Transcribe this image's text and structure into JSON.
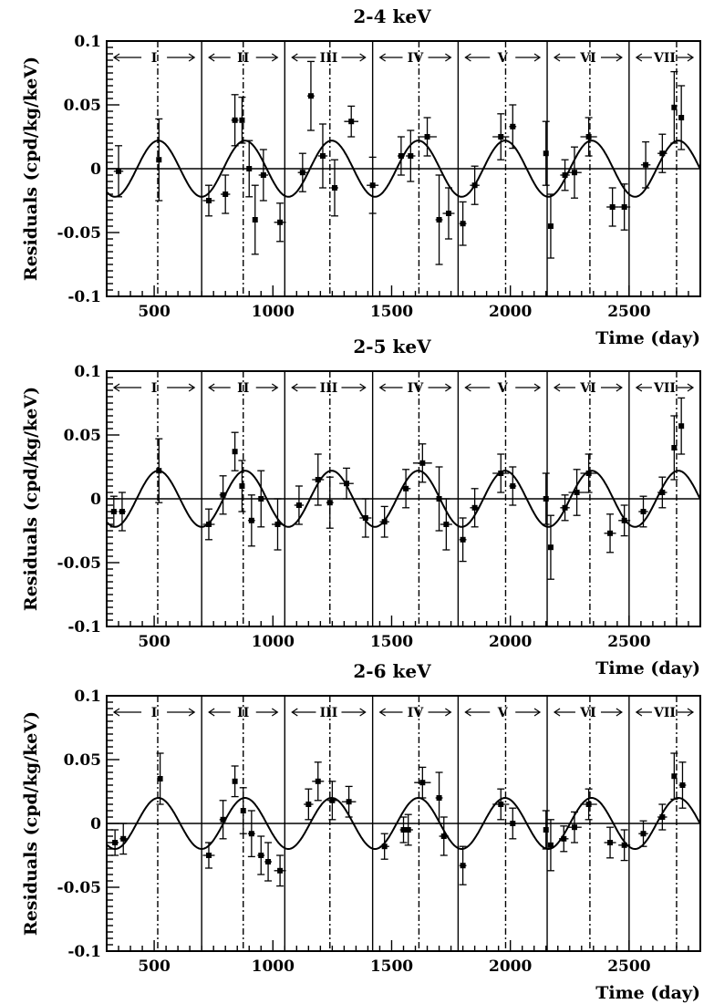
{
  "chart_data": [
    {
      "type": "scatter",
      "title": "2-4 keV",
      "xlabel": "Time (day)",
      "ylabel": "Residuals (cpd/kg/keV)",
      "xlim": [
        300,
        2800
      ],
      "ylim": [
        -0.1,
        0.1
      ],
      "x_ticks": [
        "500",
        "1000",
        "1500",
        "2000",
        "2500"
      ],
      "y_ticks": [
        "0.1",
        "0.05",
        "0",
        "-0.05",
        "-0.1"
      ],
      "annual_periods": [
        "I",
        "II",
        "III",
        "IV",
        "V",
        "VI",
        "VII"
      ],
      "period_boundaries": [
        300,
        700,
        1050,
        1420,
        1780,
        2155,
        2500,
        2800
      ],
      "phase_lines": [
        515,
        875,
        1240,
        1615,
        1980,
        2335,
        2700
      ],
      "cosine": {
        "amplitude": 0.022,
        "period": 365,
        "phase": 152.5
      },
      "series": [
        {
          "points": [
            {
              "x": 350,
              "y": -0.002,
              "xerr": 20,
              "yerr": 0.02
            },
            {
              "x": 520,
              "y": 0.007,
              "xerr": 10,
              "yerr": 0.032
            },
            {
              "x": 730,
              "y": -0.025,
              "xerr": 25,
              "yerr": 0.012
            },
            {
              "x": 800,
              "y": -0.02,
              "xerr": 20,
              "yerr": 0.015
            },
            {
              "x": 840,
              "y": 0.038,
              "xerr": 15,
              "yerr": 0.02
            },
            {
              "x": 870,
              "y": 0.038,
              "xerr": 10,
              "yerr": 0.018
            },
            {
              "x": 900,
              "y": 0.0,
              "xerr": 10,
              "yerr": 0.022
            },
            {
              "x": 925,
              "y": -0.04,
              "xerr": 10,
              "yerr": 0.027
            },
            {
              "x": 960,
              "y": -0.005,
              "xerr": 20,
              "yerr": 0.02
            },
            {
              "x": 1030,
              "y": -0.042,
              "xerr": 25,
              "yerr": 0.015
            },
            {
              "x": 1125,
              "y": -0.003,
              "xerr": 20,
              "yerr": 0.015
            },
            {
              "x": 1160,
              "y": 0.057,
              "xerr": 15,
              "yerr": 0.027
            },
            {
              "x": 1210,
              "y": 0.01,
              "xerr": 20,
              "yerr": 0.025
            },
            {
              "x": 1260,
              "y": -0.015,
              "xerr": 15,
              "yerr": 0.022
            },
            {
              "x": 1330,
              "y": 0.037,
              "xerr": 30,
              "yerr": 0.012
            },
            {
              "x": 1420,
              "y": -0.013,
              "xerr": 25,
              "yerr": 0.022
            },
            {
              "x": 1540,
              "y": 0.01,
              "xerr": 15,
              "yerr": 0.015
            },
            {
              "x": 1580,
              "y": 0.01,
              "xerr": 20,
              "yerr": 0.02
            },
            {
              "x": 1650,
              "y": 0.025,
              "xerr": 40,
              "yerr": 0.015
            },
            {
              "x": 1700,
              "y": -0.04,
              "xerr": 15,
              "yerr": 0.035
            },
            {
              "x": 1740,
              "y": -0.035,
              "xerr": 25,
              "yerr": 0.02
            },
            {
              "x": 1800,
              "y": -0.043,
              "xerr": 15,
              "yerr": 0.017
            },
            {
              "x": 1850,
              "y": -0.013,
              "xerr": 20,
              "yerr": 0.015
            },
            {
              "x": 1960,
              "y": 0.025,
              "xerr": 35,
              "yerr": 0.018
            },
            {
              "x": 2010,
              "y": 0.033,
              "xerr": 15,
              "yerr": 0.017
            },
            {
              "x": 2150,
              "y": 0.012,
              "xerr": 5,
              "yerr": 0.025
            },
            {
              "x": 2170,
              "y": -0.045,
              "xerr": 10,
              "yerr": 0.025
            },
            {
              "x": 2230,
              "y": -0.005,
              "xerr": 20,
              "yerr": 0.012
            },
            {
              "x": 2270,
              "y": -0.003,
              "xerr": 30,
              "yerr": 0.02
            },
            {
              "x": 2330,
              "y": 0.025,
              "xerr": 35,
              "yerr": 0.015
            },
            {
              "x": 2430,
              "y": -0.03,
              "xerr": 25,
              "yerr": 0.015
            },
            {
              "x": 2480,
              "y": -0.03,
              "xerr": 25,
              "yerr": 0.018
            },
            {
              "x": 2570,
              "y": 0.003,
              "xerr": 20,
              "yerr": 0.018
            },
            {
              "x": 2640,
              "y": 0.012,
              "xerr": 20,
              "yerr": 0.015
            },
            {
              "x": 2690,
              "y": 0.048,
              "xerr": 10,
              "yerr": 0.028
            },
            {
              "x": 2720,
              "y": 0.04,
              "xerr": 10,
              "yerr": 0.025
            }
          ]
        }
      ]
    },
    {
      "type": "scatter",
      "title": "2-5 keV",
      "xlabel": "Time (day)",
      "ylabel": "Residuals (cpd/kg/keV)",
      "xlim": [
        300,
        2800
      ],
      "ylim": [
        -0.1,
        0.1
      ],
      "x_ticks": [
        "500",
        "1000",
        "1500",
        "2000",
        "2500"
      ],
      "y_ticks": [
        "0.1",
        "0.05",
        "0",
        "-0.05",
        "-0.1"
      ],
      "annual_periods": [
        "I",
        "II",
        "III",
        "IV",
        "V",
        "VI",
        "VII"
      ],
      "period_boundaries": [
        300,
        700,
        1050,
        1420,
        1780,
        2155,
        2500,
        2800
      ],
      "phase_lines": [
        515,
        875,
        1240,
        1615,
        1980,
        2335,
        2700
      ],
      "cosine": {
        "amplitude": 0.022,
        "period": 365,
        "phase": 152.5
      },
      "series": [
        {
          "points": [
            {
              "x": 330,
              "y": -0.01,
              "xerr": 15,
              "yerr": 0.012
            },
            {
              "x": 365,
              "y": -0.01,
              "xerr": 15,
              "yerr": 0.015
            },
            {
              "x": 520,
              "y": 0.022,
              "xerr": 10,
              "yerr": 0.025
            },
            {
              "x": 730,
              "y": -0.02,
              "xerr": 25,
              "yerr": 0.012
            },
            {
              "x": 790,
              "y": 0.003,
              "xerr": 15,
              "yerr": 0.015
            },
            {
              "x": 840,
              "y": 0.037,
              "xerr": 10,
              "yerr": 0.015
            },
            {
              "x": 870,
              "y": 0.01,
              "xerr": 10,
              "yerr": 0.02
            },
            {
              "x": 910,
              "y": -0.017,
              "xerr": 15,
              "yerr": 0.02
            },
            {
              "x": 950,
              "y": 0.0,
              "xerr": 15,
              "yerr": 0.022
            },
            {
              "x": 1020,
              "y": -0.02,
              "xerr": 25,
              "yerr": 0.02
            },
            {
              "x": 1110,
              "y": -0.005,
              "xerr": 20,
              "yerr": 0.015
            },
            {
              "x": 1190,
              "y": 0.015,
              "xerr": 25,
              "yerr": 0.02
            },
            {
              "x": 1240,
              "y": -0.003,
              "xerr": 15,
              "yerr": 0.02
            },
            {
              "x": 1310,
              "y": 0.012,
              "xerr": 30,
              "yerr": 0.012
            },
            {
              "x": 1390,
              "y": -0.015,
              "xerr": 25,
              "yerr": 0.015
            },
            {
              "x": 1470,
              "y": -0.018,
              "xerr": 20,
              "yerr": 0.012
            },
            {
              "x": 1560,
              "y": 0.008,
              "xerr": 20,
              "yerr": 0.015
            },
            {
              "x": 1630,
              "y": 0.028,
              "xerr": 40,
              "yerr": 0.015
            },
            {
              "x": 1700,
              "y": 0.0,
              "xerr": 15,
              "yerr": 0.025
            },
            {
              "x": 1730,
              "y": -0.02,
              "xerr": 25,
              "yerr": 0.02
            },
            {
              "x": 1800,
              "y": -0.032,
              "xerr": 15,
              "yerr": 0.017
            },
            {
              "x": 1850,
              "y": -0.007,
              "xerr": 20,
              "yerr": 0.015
            },
            {
              "x": 1960,
              "y": 0.02,
              "xerr": 35,
              "yerr": 0.015
            },
            {
              "x": 2010,
              "y": 0.01,
              "xerr": 15,
              "yerr": 0.015
            },
            {
              "x": 2150,
              "y": 0.0,
              "xerr": 5,
              "yerr": 0.02
            },
            {
              "x": 2170,
              "y": -0.038,
              "xerr": 10,
              "yerr": 0.025
            },
            {
              "x": 2230,
              "y": -0.007,
              "xerr": 20,
              "yerr": 0.01
            },
            {
              "x": 2280,
              "y": 0.005,
              "xerr": 35,
              "yerr": 0.018
            },
            {
              "x": 2330,
              "y": 0.02,
              "xerr": 35,
              "yerr": 0.015
            },
            {
              "x": 2420,
              "y": -0.027,
              "xerr": 25,
              "yerr": 0.015
            },
            {
              "x": 2480,
              "y": -0.017,
              "xerr": 25,
              "yerr": 0.012
            },
            {
              "x": 2560,
              "y": -0.01,
              "xerr": 20,
              "yerr": 0.012
            },
            {
              "x": 2640,
              "y": 0.005,
              "xerr": 20,
              "yerr": 0.012
            },
            {
              "x": 2690,
              "y": 0.04,
              "xerr": 10,
              "yerr": 0.025
            },
            {
              "x": 2720,
              "y": 0.057,
              "xerr": 10,
              "yerr": 0.022
            }
          ]
        }
      ]
    },
    {
      "type": "scatter",
      "title": "2-6 keV",
      "xlabel": "Time (day)",
      "ylabel": "Residuals (cpd/kg/keV)",
      "xlim": [
        300,
        2800
      ],
      "ylim": [
        -0.1,
        0.1
      ],
      "x_ticks": [
        "500",
        "1000",
        "1500",
        "2000",
        "2500"
      ],
      "y_ticks": [
        "0.1",
        "0.05",
        "0",
        "-0.05",
        "-0.1"
      ],
      "annual_periods": [
        "I",
        "II",
        "III",
        "IV",
        "V",
        "VI",
        "VII"
      ],
      "period_boundaries": [
        300,
        700,
        1050,
        1420,
        1780,
        2155,
        2500,
        2800
      ],
      "phase_lines": [
        515,
        875,
        1240,
        1615,
        1980,
        2335,
        2700
      ],
      "cosine": {
        "amplitude": 0.02,
        "period": 365,
        "phase": 152.5
      },
      "series": [
        {
          "points": [
            {
              "x": 335,
              "y": -0.015,
              "xerr": 15,
              "yerr": 0.01
            },
            {
              "x": 370,
              "y": -0.012,
              "xerr": 15,
              "yerr": 0.012
            },
            {
              "x": 525,
              "y": 0.035,
              "xerr": 10,
              "yerr": 0.02
            },
            {
              "x": 730,
              "y": -0.025,
              "xerr": 25,
              "yerr": 0.01
            },
            {
              "x": 790,
              "y": 0.003,
              "xerr": 15,
              "yerr": 0.015
            },
            {
              "x": 840,
              "y": 0.033,
              "xerr": 10,
              "yerr": 0.012
            },
            {
              "x": 875,
              "y": 0.01,
              "xerr": 10,
              "yerr": 0.018
            },
            {
              "x": 910,
              "y": -0.008,
              "xerr": 15,
              "yerr": 0.018
            },
            {
              "x": 950,
              "y": -0.025,
              "xerr": 15,
              "yerr": 0.015
            },
            {
              "x": 980,
              "y": -0.03,
              "xerr": 15,
              "yerr": 0.015
            },
            {
              "x": 1030,
              "y": -0.037,
              "xerr": 25,
              "yerr": 0.012
            },
            {
              "x": 1150,
              "y": 0.015,
              "xerr": 20,
              "yerr": 0.012
            },
            {
              "x": 1190,
              "y": 0.033,
              "xerr": 25,
              "yerr": 0.015
            },
            {
              "x": 1250,
              "y": 0.018,
              "xerr": 20,
              "yerr": 0.015
            },
            {
              "x": 1320,
              "y": 0.017,
              "xerr": 30,
              "yerr": 0.012
            },
            {
              "x": 1470,
              "y": -0.018,
              "xerr": 20,
              "yerr": 0.01
            },
            {
              "x": 1550,
              "y": -0.005,
              "xerr": 15,
              "yerr": 0.01
            },
            {
              "x": 1570,
              "y": -0.005,
              "xerr": 20,
              "yerr": 0.012
            },
            {
              "x": 1630,
              "y": 0.032,
              "xerr": 35,
              "yerr": 0.012
            },
            {
              "x": 1700,
              "y": 0.02,
              "xerr": 15,
              "yerr": 0.02
            },
            {
              "x": 1720,
              "y": -0.01,
              "xerr": 20,
              "yerr": 0.015
            },
            {
              "x": 1800,
              "y": -0.033,
              "xerr": 15,
              "yerr": 0.015
            },
            {
              "x": 1960,
              "y": 0.015,
              "xerr": 35,
              "yerr": 0.012
            },
            {
              "x": 2010,
              "y": 0.0,
              "xerr": 15,
              "yerr": 0.012
            },
            {
              "x": 2150,
              "y": -0.005,
              "xerr": 5,
              "yerr": 0.015
            },
            {
              "x": 2170,
              "y": -0.017,
              "xerr": 10,
              "yerr": 0.02
            },
            {
              "x": 2225,
              "y": -0.012,
              "xerr": 20,
              "yerr": 0.01
            },
            {
              "x": 2270,
              "y": -0.003,
              "xerr": 30,
              "yerr": 0.012
            },
            {
              "x": 2330,
              "y": 0.015,
              "xerr": 35,
              "yerr": 0.012
            },
            {
              "x": 2420,
              "y": -0.015,
              "xerr": 25,
              "yerr": 0.012
            },
            {
              "x": 2480,
              "y": -0.017,
              "xerr": 25,
              "yerr": 0.012
            },
            {
              "x": 2560,
              "y": -0.008,
              "xerr": 20,
              "yerr": 0.01
            },
            {
              "x": 2640,
              "y": 0.005,
              "xerr": 20,
              "yerr": 0.01
            },
            {
              "x": 2690,
              "y": 0.037,
              "xerr": 10,
              "yerr": 0.018
            },
            {
              "x": 2725,
              "y": 0.03,
              "xerr": 15,
              "yerr": 0.018
            }
          ]
        }
      ]
    }
  ]
}
